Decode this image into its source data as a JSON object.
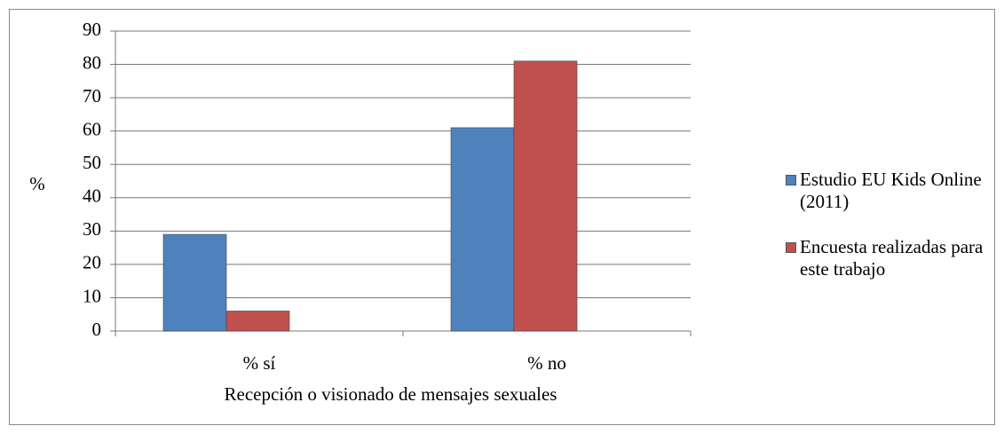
{
  "chart_data": {
    "type": "bar",
    "categories": [
      "% sí",
      "% no"
    ],
    "series": [
      {
        "name": "Estudio EU Kids Online (2011)",
        "color": "#4f81bd",
        "values": [
          29,
          61
        ]
      },
      {
        "name": "Encuesta realizadas para este trabajo",
        "color": "#c0504d",
        "values": [
          6,
          81
        ]
      }
    ],
    "y_label": "%",
    "x_label": "Recepción o visionado de mensajes sexuales",
    "ylim": [
      0,
      90
    ],
    "yticks": [
      0,
      10,
      20,
      30,
      40,
      50,
      60,
      70,
      80,
      90
    ],
    "grid": true,
    "legend": "right"
  }
}
